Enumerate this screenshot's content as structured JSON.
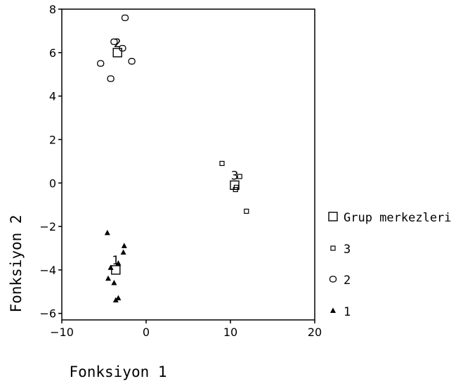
{
  "chart_data": {
    "type": "scatter",
    "xlabel": "Fonksiyon 1",
    "ylabel": "Fonksiyon 2",
    "xlim": [
      -10,
      20
    ],
    "ylim": [
      -6.3,
      8
    ],
    "xticks": [
      -10,
      0,
      10,
      20
    ],
    "xtick_labels": [
      "-10",
      "0",
      "10",
      "20"
    ],
    "yticks": [
      -6,
      -4,
      -2,
      0,
      2,
      4,
      6,
      8
    ],
    "ytick_labels": [
      "-6",
      "-4",
      "-2",
      "0",
      "2",
      "4",
      "6",
      "8"
    ],
    "grid": false,
    "legend_position": "right",
    "series": [
      {
        "name": "1",
        "marker": "triangle",
        "points": [
          {
            "x": -4.6,
            "y": -2.3
          },
          {
            "x": -2.6,
            "y": -2.9
          },
          {
            "x": -2.7,
            "y": -3.2
          },
          {
            "x": -3.3,
            "y": -3.7
          },
          {
            "x": -4.2,
            "y": -3.9
          },
          {
            "x": -4.5,
            "y": -4.4
          },
          {
            "x": -3.8,
            "y": -4.6
          },
          {
            "x": -3.6,
            "y": -5.4
          },
          {
            "x": -3.3,
            "y": -5.3
          }
        ]
      },
      {
        "name": "2",
        "marker": "circle",
        "points": [
          {
            "x": -2.5,
            "y": 7.6
          },
          {
            "x": -3.8,
            "y": 6.5
          },
          {
            "x": -2.8,
            "y": 6.2
          },
          {
            "x": -5.4,
            "y": 5.5
          },
          {
            "x": -1.7,
            "y": 5.6
          },
          {
            "x": -4.2,
            "y": 4.8
          }
        ]
      },
      {
        "name": "3",
        "marker": "small-square",
        "points": [
          {
            "x": 9.0,
            "y": 0.9
          },
          {
            "x": 11.1,
            "y": 0.3
          },
          {
            "x": 10.7,
            "y": -0.2
          },
          {
            "x": 10.6,
            "y": -0.3
          },
          {
            "x": 11.9,
            "y": -1.3
          }
        ]
      }
    ],
    "centroids": {
      "name": "Grup merkezleri",
      "marker": "large-square",
      "points": [
        {
          "label": "1",
          "x": -3.6,
          "y": -4.0
        },
        {
          "label": "2",
          "x": -3.4,
          "y": 6.0
        },
        {
          "label": "3",
          "x": 10.5,
          "y": -0.1
        }
      ]
    },
    "legend": [
      {
        "label": "Grup merkezleri",
        "marker": "large-square"
      },
      {
        "label": "3",
        "marker": "small-square"
      },
      {
        "label": "2",
        "marker": "circle"
      },
      {
        "label": "1",
        "marker": "triangle"
      }
    ]
  }
}
